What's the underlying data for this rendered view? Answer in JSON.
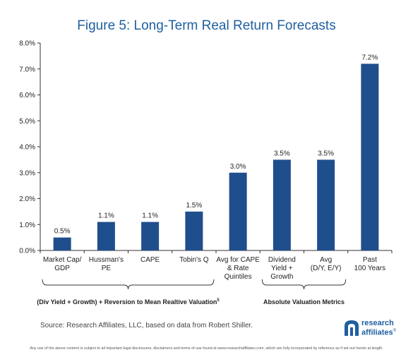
{
  "chart_data": {
    "type": "bar",
    "title": "Figure 5: Long-Term Real Return Forecasts",
    "categories": [
      [
        "Market Cap/",
        "GDP"
      ],
      [
        "Hussman's",
        "PE"
      ],
      [
        "CAPE"
      ],
      [
        "Tobin's Q"
      ],
      [
        "Avg for CAPE",
        "& Rate",
        "Quintiles"
      ],
      [
        "Dividend",
        "Yield +",
        "Growth"
      ],
      [
        "Avg",
        "(D/Y, E/Y)"
      ],
      [
        "Past",
        "100 Years"
      ]
    ],
    "values": [
      0.5,
      1.1,
      1.1,
      1.5,
      3.0,
      3.5,
      3.5,
      7.2
    ],
    "data_labels": [
      "0.5%",
      "1.1%",
      "1.1%",
      "1.5%",
      "3.0%",
      "3.5%",
      "3.5%",
      "7.2%"
    ],
    "y_ticks": [
      "0.0%",
      "1.0%",
      "2.0%",
      "3.0%",
      "4.0%",
      "5.0%",
      "6.0%",
      "7.0%",
      "8.0%"
    ],
    "ylim": [
      0,
      8
    ],
    "grid": false,
    "bar_color": "#1f4e8c",
    "groups": [
      {
        "label": "(Div Yield + Growth) + Reversion to Mean Realtive Valuation",
        "superscript": "5",
        "from": 0,
        "to": 3
      },
      {
        "label": "Absolute Valuation Metrics",
        "superscript": "",
        "from": 5,
        "to": 6
      }
    ]
  },
  "footer": {
    "source": "Source: Research Affiliates, LLC, based on data from Robert Shiller.",
    "logo_line1": "research",
    "logo_line2": "affiliates",
    "logo_mark": "®",
    "disclaimer": "Any use of the above content is subject to all important legal disclosures, disclaimers and terms of use found at www.researchaffiliates.com, which are fully incorporated by reference as if set out herein at length."
  },
  "colors": {
    "title": "#1f5fa0",
    "brand": "#1f5fa0"
  }
}
